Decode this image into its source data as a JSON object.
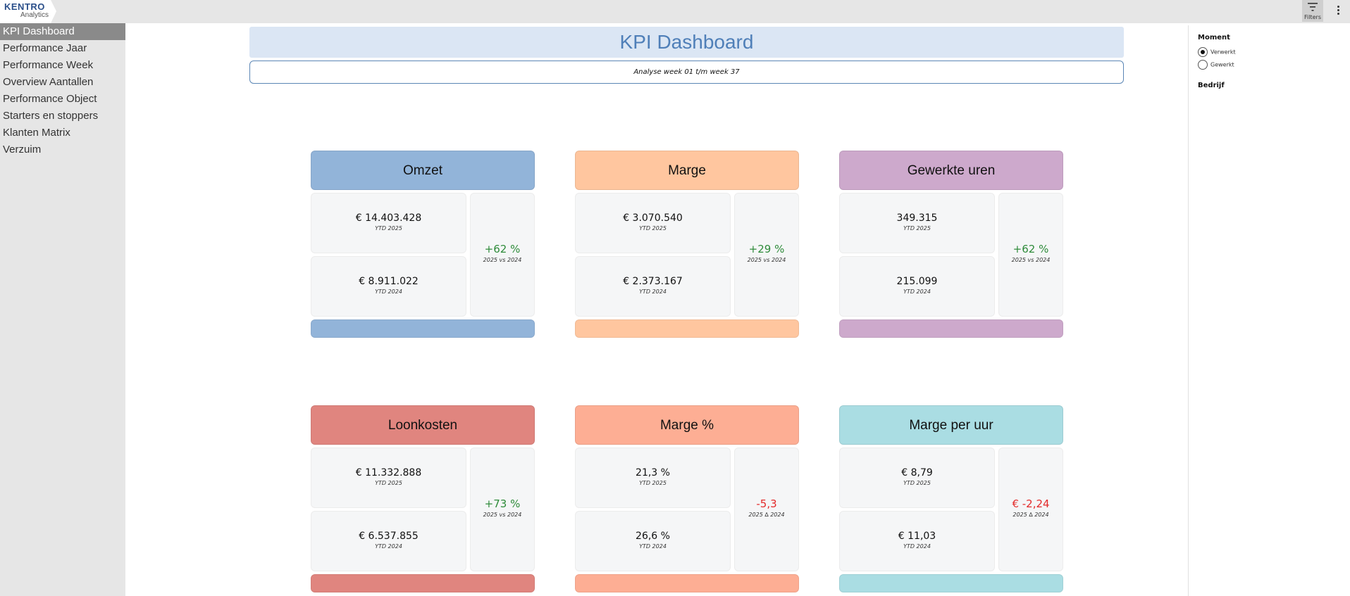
{
  "logo": {
    "line1": "KENTRO",
    "line2": "Analytics"
  },
  "toolbar": {
    "filters_label": "Filters"
  },
  "sidebar": {
    "items": [
      {
        "label": "KPI Dashboard",
        "active": true
      },
      {
        "label": "Performance Jaar"
      },
      {
        "label": "Performance Week"
      },
      {
        "label": "Overview Aantallen"
      },
      {
        "label": "Performance Object"
      },
      {
        "label": "Starters en stoppers"
      },
      {
        "label": "Klanten Matrix"
      },
      {
        "label": "Verzuim"
      }
    ]
  },
  "header": {
    "title": "KPI Dashboard",
    "subtitle": "Analyse week 01 t/m week 37"
  },
  "filters": {
    "moment_title": "Moment",
    "options": [
      {
        "label": "Verwerkt",
        "selected": true
      },
      {
        "label": "Gewerkt",
        "selected": false
      }
    ],
    "bedrijf_title": "Bedrijf"
  },
  "kpis": [
    {
      "title": "Omzet",
      "color": "#92b4d9",
      "current_value": "€ 14.403.428",
      "current_label": "YTD 2025",
      "previous_value": "€ 8.911.022",
      "previous_label": "YTD 2024",
      "change": "+62 %",
      "change_label": "2025 vs 2024",
      "change_color": "#2e8b3a"
    },
    {
      "title": "Marge",
      "color": "#ffc69f",
      "current_value": "€ 3.070.540",
      "current_label": "YTD 2025",
      "previous_value": "€ 2.373.167",
      "previous_label": "YTD 2024",
      "change": "+29 %",
      "change_label": "2025 vs 2024",
      "change_color": "#2e8b3a"
    },
    {
      "title": "Gewerkte uren",
      "color": "#cda9cc",
      "current_value": "349.315",
      "current_label": "YTD 2025",
      "previous_value": "215.099",
      "previous_label": "YTD 2024",
      "change": "+62 %",
      "change_label": "2025 vs 2024",
      "change_color": "#2e8b3a"
    },
    {
      "title": "Loonkosten",
      "color": "#e0857f",
      "current_value": "€ 11.332.888",
      "current_label": "YTD 2025",
      "previous_value": "€ 6.537.855",
      "previous_label": "YTD 2024",
      "change": "+73 %",
      "change_label": "2025 vs 2024",
      "change_color": "#2e8b3a"
    },
    {
      "title": "Marge %",
      "color": "#fdae94",
      "current_value": "21,3 %",
      "current_label": "YTD 2025",
      "previous_value": "26,6 %",
      "previous_label": "YTD 2024",
      "change": "-5,3",
      "change_label": "2025 ∆ 2024",
      "change_color": "#e32a2a"
    },
    {
      "title": "Marge per uur",
      "color": "#aadde3",
      "current_value": "€ 8,79",
      "current_label": "YTD 2025",
      "previous_value": "€ 11,03",
      "previous_label": "YTD 2024",
      "change": "€ -2,24",
      "change_label": "2025 ∆ 2024",
      "change_color": "#e32a2a"
    }
  ]
}
